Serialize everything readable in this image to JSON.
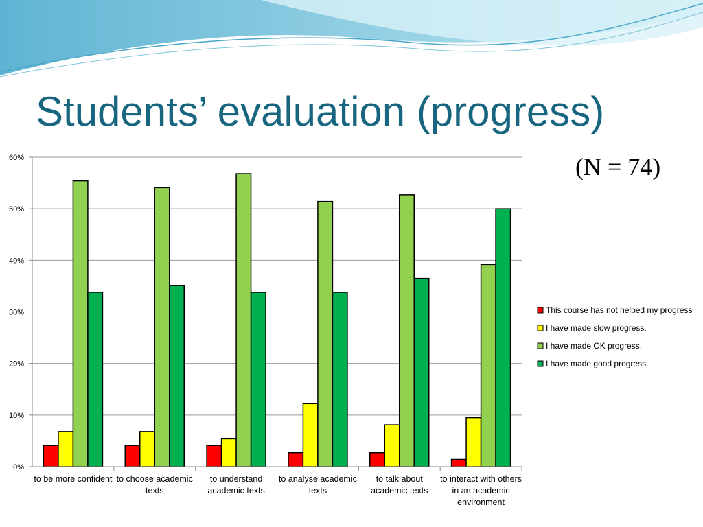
{
  "title": "Students’ evaluation (progress)",
  "note": "(N = 74)",
  "chart_data": {
    "type": "bar",
    "categories": [
      "to be more confident",
      "to choose academic texts",
      "to understand academic texts",
      "to analyse academic texts",
      "to talk about academic texts",
      "to interact with others in an academic environment"
    ],
    "series": [
      {
        "name": "This course has not helped my progress",
        "color": "#ff0000",
        "values": [
          4.1,
          4.1,
          4.1,
          2.7,
          2.7,
          1.4
        ]
      },
      {
        "name": "I have made slow progress.",
        "color": "#ffff00",
        "values": [
          6.8,
          6.8,
          5.4,
          12.2,
          8.1,
          9.5
        ]
      },
      {
        "name": "I have made OK progress.",
        "color": "#92d050",
        "values": [
          55.4,
          54.1,
          56.8,
          51.4,
          52.7,
          39.2
        ]
      },
      {
        "name": "I have made good progress.",
        "color": "#00b050",
        "values": [
          33.8,
          35.1,
          33.8,
          33.8,
          36.5,
          50.0
        ]
      }
    ],
    "ylim": [
      0,
      60
    ],
    "yticks": [
      {
        "value": 0,
        "label": "0%"
      },
      {
        "value": 10,
        "label": "10%"
      },
      {
        "value": 20,
        "label": "20%"
      },
      {
        "value": 30,
        "label": "30%"
      },
      {
        "value": 40,
        "label": "40%"
      },
      {
        "value": 50,
        "label": "50%"
      },
      {
        "value": 60,
        "label": "60%"
      }
    ],
    "grid": true,
    "legend": "right"
  }
}
